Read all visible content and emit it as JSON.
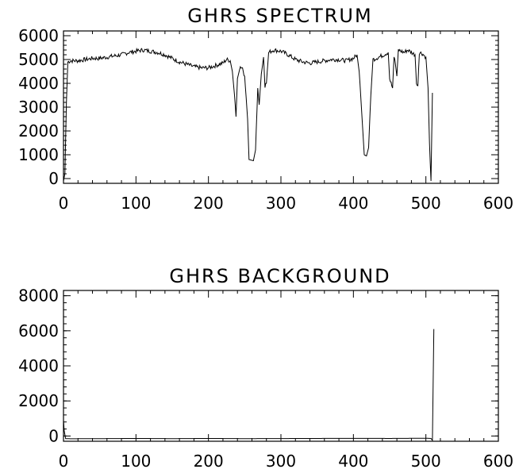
{
  "chart_data": [
    {
      "id": "spectrum",
      "type": "line",
      "title": "GHRS SPECTRUM",
      "xlabel": "",
      "ylabel": "",
      "xlim": [
        0,
        600
      ],
      "ylim": [
        -200,
        6200
      ],
      "xticks": [
        0,
        100,
        200,
        300,
        400,
        500,
        600
      ],
      "yticks": [
        0,
        1000,
        2000,
        3000,
        4000,
        5000,
        6000
      ],
      "xtick_labels": [
        "0",
        "100",
        "200",
        "300",
        "400",
        "500",
        "600"
      ],
      "ytick_labels": [
        "0",
        "1000",
        "2000",
        "3000",
        "4000",
        "5000",
        "6000"
      ],
      "grid": false,
      "color": "#000000",
      "points": [
        [
          0,
          -100
        ],
        [
          2,
          200
        ],
        [
          4,
          3200
        ],
        [
          6,
          4900
        ],
        [
          10,
          4950
        ],
        [
          20,
          4950
        ],
        [
          30,
          5000
        ],
        [
          40,
          5050
        ],
        [
          50,
          5050
        ],
        [
          60,
          5100
        ],
        [
          70,
          5150
        ],
        [
          80,
          5200
        ],
        [
          90,
          5300
        ],
        [
          100,
          5350
        ],
        [
          110,
          5400
        ],
        [
          120,
          5350
        ],
        [
          130,
          5300
        ],
        [
          140,
          5200
        ],
        [
          150,
          5050
        ],
        [
          160,
          4900
        ],
        [
          170,
          4800
        ],
        [
          180,
          4700
        ],
        [
          190,
          4650
        ],
        [
          200,
          4650
        ],
        [
          210,
          4750
        ],
        [
          220,
          4850
        ],
        [
          225,
          5000
        ],
        [
          230,
          4950
        ],
        [
          233,
          4500
        ],
        [
          236,
          3500
        ],
        [
          238,
          2600
        ],
        [
          240,
          4200
        ],
        [
          244,
          4700
        ],
        [
          247,
          4650
        ],
        [
          250,
          4300
        ],
        [
          254,
          2500
        ],
        [
          256,
          800
        ],
        [
          262,
          750
        ],
        [
          265,
          1200
        ],
        [
          268,
          3800
        ],
        [
          270,
          3100
        ],
        [
          273,
          4400
        ],
        [
          276,
          5100
        ],
        [
          278,
          3900
        ],
        [
          280,
          4000
        ],
        [
          283,
          5300
        ],
        [
          290,
          5400
        ],
        [
          300,
          5350
        ],
        [
          310,
          5200
        ],
        [
          320,
          5000
        ],
        [
          330,
          4900
        ],
        [
          340,
          4850
        ],
        [
          350,
          4900
        ],
        [
          360,
          4950
        ],
        [
          370,
          5000
        ],
        [
          380,
          5000
        ],
        [
          390,
          4950
        ],
        [
          400,
          5050
        ],
        [
          405,
          5200
        ],
        [
          408,
          4500
        ],
        [
          412,
          2500
        ],
        [
          415,
          1000
        ],
        [
          418,
          950
        ],
        [
          421,
          1300
        ],
        [
          424,
          3500
        ],
        [
          427,
          5000
        ],
        [
          435,
          5100
        ],
        [
          442,
          5200
        ],
        [
          448,
          5300
        ],
        [
          450,
          4200
        ],
        [
          452,
          4000
        ],
        [
          454,
          3800
        ],
        [
          456,
          5100
        ],
        [
          458,
          4800
        ],
        [
          460,
          4300
        ],
        [
          462,
          5400
        ],
        [
          470,
          5300
        ],
        [
          475,
          5400
        ],
        [
          480,
          5300
        ],
        [
          485,
          5200
        ],
        [
          487,
          4000
        ],
        [
          489,
          3900
        ],
        [
          491,
          5300
        ],
        [
          495,
          5250
        ],
        [
          500,
          5100
        ],
        [
          503,
          3800
        ],
        [
          505,
          1500
        ],
        [
          507,
          -100
        ],
        [
          509,
          3600
        ]
      ]
    },
    {
      "id": "background",
      "type": "line",
      "title": "GHRS BACKGROUND",
      "xlabel": "",
      "ylabel": "",
      "xlim": [
        0,
        600
      ],
      "ylim": [
        -300,
        8300
      ],
      "xticks": [
        0,
        100,
        200,
        300,
        400,
        500,
        600
      ],
      "yticks": [
        0,
        2000,
        4000,
        6000,
        8000
      ],
      "xtick_labels": [
        "0",
        "100",
        "200",
        "300",
        "400",
        "500",
        "600"
      ],
      "ytick_labels": [
        "0",
        "2000",
        "4000",
        "6000",
        "8000"
      ],
      "grid": false,
      "color": "#000000",
      "points": [
        [
          0,
          900
        ],
        [
          1,
          300
        ],
        [
          3,
          -150
        ],
        [
          10,
          -160
        ],
        [
          50,
          -150
        ],
        [
          100,
          -140
        ],
        [
          150,
          -150
        ],
        [
          200,
          -140
        ],
        [
          250,
          -150
        ],
        [
          300,
          -145
        ],
        [
          350,
          -140
        ],
        [
          400,
          -135
        ],
        [
          450,
          -140
        ],
        [
          500,
          -130
        ],
        [
          507,
          -140
        ],
        [
          509,
          -250
        ],
        [
          511,
          6100
        ]
      ]
    }
  ]
}
